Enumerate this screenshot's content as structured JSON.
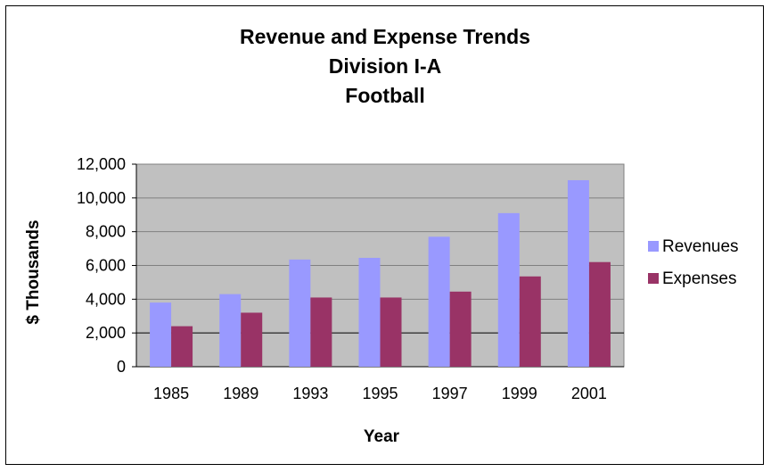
{
  "chart_data": {
    "type": "bar",
    "title": [
      "Revenue and Expense Trends",
      "Division I-A",
      "Football"
    ],
    "xlabel": "Year",
    "ylabel": "$ Thousands",
    "categories": [
      "1985",
      "1989",
      "1993",
      "1995",
      "1997",
      "1999",
      "2001"
    ],
    "series": [
      {
        "name": "Revenues",
        "color": "#9999ff",
        "values": [
          3800,
          4300,
          6350,
          6450,
          7700,
          9100,
          11050
        ]
      },
      {
        "name": "Expenses",
        "color": "#993366",
        "values": [
          2400,
          3200,
          4100,
          4100,
          4450,
          5350,
          6200
        ]
      }
    ],
    "ylim": [
      0,
      12000
    ],
    "yticks": [
      0,
      2000,
      4000,
      6000,
      8000,
      10000,
      12000
    ],
    "ytick_labels": [
      "0",
      "2,000",
      "4,000",
      "6,000",
      "8,000",
      "10,000",
      "12,000"
    ],
    "grid": true,
    "plot_background": "#c0c0c0",
    "legend_position": "right"
  }
}
